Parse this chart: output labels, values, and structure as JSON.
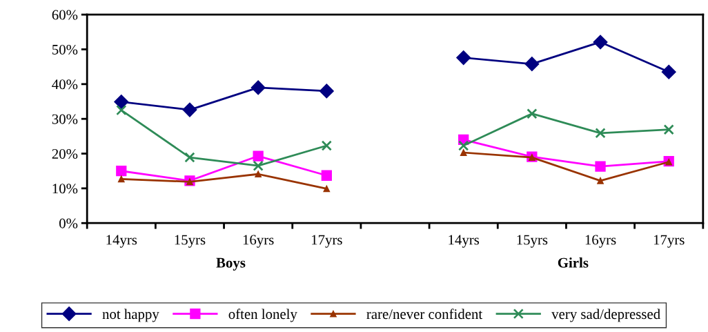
{
  "chart_data": {
    "type": "line",
    "categories": [
      "14yrs",
      "15yrs",
      "16yrs",
      "17yrs",
      null,
      "14yrs",
      "15yrs",
      "16yrs",
      "17yrs"
    ],
    "series": [
      {
        "name": "not happy",
        "color": "#000080",
        "marker": "diamond",
        "values": [
          34.9,
          32.6,
          39.0,
          38.0,
          null,
          47.6,
          45.8,
          52.1,
          43.5
        ]
      },
      {
        "name": "often lonely",
        "color": "#ff00ff",
        "marker": "square",
        "values": [
          15.0,
          12.2,
          19.3,
          13.7,
          null,
          24.0,
          19.1,
          16.3,
          17.8
        ]
      },
      {
        "name": "rare/never confident",
        "color": "#993300",
        "marker": "triangle",
        "values": [
          12.7,
          11.9,
          14.1,
          9.9,
          null,
          20.3,
          18.9,
          12.2,
          17.6
        ]
      },
      {
        "name": "very sad/depressed",
        "color": "#2e8b57",
        "marker": "cross",
        "values": [
          32.5,
          18.9,
          16.5,
          22.3,
          null,
          22.3,
          31.5,
          25.9,
          26.9
        ]
      }
    ],
    "ylim": [
      0,
      60
    ],
    "yticks": [
      {
        "value": 0,
        "label": "0%"
      },
      {
        "value": 10,
        "label": "10%"
      },
      {
        "value": 20,
        "label": "20%"
      },
      {
        "value": 30,
        "label": "30%"
      },
      {
        "value": 40,
        "label": "40%"
      },
      {
        "value": 50,
        "label": "50%"
      },
      {
        "value": 60,
        "label": "60%"
      }
    ],
    "annotations": [
      "Boys",
      "Girls"
    ],
    "legend": "bottom",
    "grid": false,
    "line_style": "solid"
  }
}
